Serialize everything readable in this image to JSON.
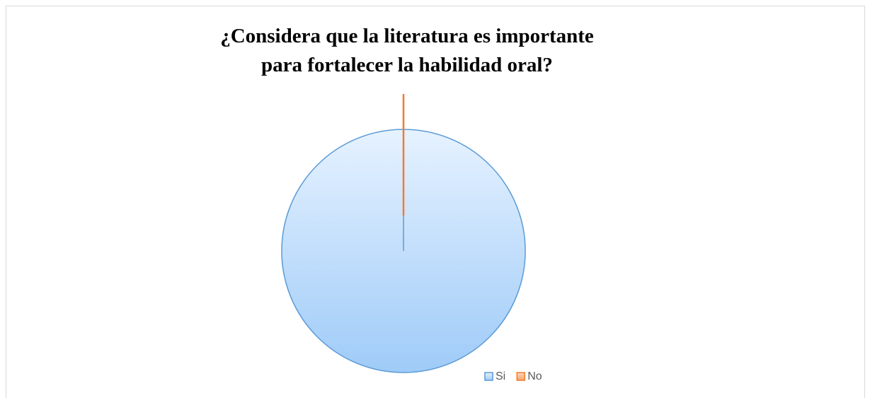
{
  "chart_data": {
    "type": "pie",
    "title": [
      "¿Considera que la literatura es  importante",
      "para fortalecer la habilidad oral?"
    ],
    "categories": [
      "Si",
      "No"
    ],
    "values": [
      100,
      0
    ],
    "colors": [
      "#5b9bd5",
      "#ed7d31"
    ],
    "legend": "bottom-right"
  }
}
